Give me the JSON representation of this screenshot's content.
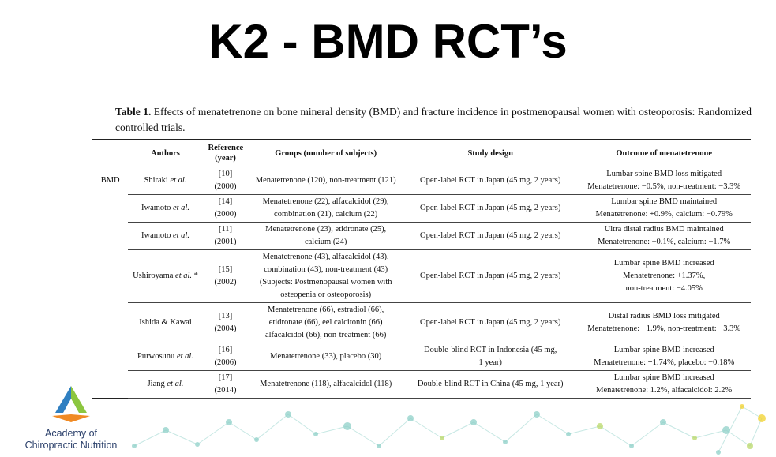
{
  "title": "K2 - BMD RCT’s",
  "table_caption": {
    "label": "Table 1.",
    "text": " Effects of menatetrenone on bone mineral density (BMD) and fracture incidence in postmenopausal women with osteoporosis: Randomized controlled trials."
  },
  "table": {
    "headers": [
      "",
      "Authors",
      "Reference (year)",
      "Groups (number of subjects)",
      "Study design",
      "Outcome of menatetrenone"
    ],
    "section_label": "BMD",
    "rows": [
      {
        "author": "Shiraki",
        "etal": " et al.",
        "suffix": "",
        "ref": "[10]",
        "year": "(2000)",
        "groups": [
          "Menatetrenone (120), non-treatment (121)"
        ],
        "design": [
          "Open-label RCT in Japan (45 mg, 2 years)"
        ],
        "outcome": [
          "Lumbar spine BMD loss mitigated",
          "Menatetrenone: −0.5%, non-treatment: −3.3%"
        ]
      },
      {
        "author": "Iwamoto",
        "etal": " et al.",
        "suffix": "",
        "ref": "[14]",
        "year": "(2000)",
        "groups": [
          "Menatetrenone (22), alfacalcidol (29),",
          "combination (21), calcium (22)"
        ],
        "design": [
          "Open-label RCT in Japan (45 mg, 2 years)"
        ],
        "outcome": [
          "Lumbar spine BMD maintained",
          "Menatetrenone: +0.9%, calcium: −0.79%"
        ]
      },
      {
        "author": "Iwamoto",
        "etal": " et al.",
        "suffix": "",
        "ref": "[11]",
        "year": "(2001)",
        "groups": [
          "Menatetrenone (23), etidronate (25),",
          "calcium (24)"
        ],
        "design": [
          "Open-label RCT in Japan (45 mg, 2 years)"
        ],
        "outcome": [
          "Ultra distal radius BMD maintained",
          "Menatetrenone: −0.1%, calcium: −1.7%"
        ]
      },
      {
        "author": "Ushiroyama",
        "etal": " et al.",
        "suffix": " *",
        "ref": "[15]",
        "year": "(2002)",
        "groups": [
          "Menatetrenone (43), alfacalcidol (43),",
          "combination (43), non-treatment (43)",
          "(Subjects: Postmenopausal women with",
          "osteopenia or osteoporosis)"
        ],
        "design": [
          "Open-label RCT in Japan (45 mg, 2 years)"
        ],
        "outcome": [
          "Lumbar spine BMD increased",
          "Menatetrenone: +1.37%,",
          "non-treatment: −4.05%"
        ]
      },
      {
        "author": "Ishida & Kawai",
        "etal": "",
        "suffix": "",
        "ref": "[13]",
        "year": "(2004)",
        "groups": [
          "Menatetrenone (66), estradiol (66),",
          "etidronate (66), eel calcitonin (66)",
          "alfacalcidol (66), non-treatment (66)"
        ],
        "design": [
          "Open-label RCT in Japan (45 mg, 2 years)"
        ],
        "outcome": [
          "Distal radius BMD loss mitigated",
          "Menatetrenone: −1.9%, non-treatment: −3.3%"
        ]
      },
      {
        "author": "Purwosunu",
        "etal": " et al.",
        "suffix": "",
        "ref": "[16]",
        "year": "(2006)",
        "groups": [
          "Menatetrenone (33), placebo (30)"
        ],
        "design": [
          "Double-blind RCT in Indonesia (45 mg,",
          "1 year)"
        ],
        "outcome": [
          "Lumbar spine BMD increased",
          "Menatetrenone: +1.74%, placebo: −0.18%"
        ]
      },
      {
        "author": "Jiang",
        "etal": " et al.",
        "suffix": "",
        "ref": "[17]",
        "year": "(2014)",
        "groups": [
          "Menatetrenone (118), alfacalcidol (118)"
        ],
        "design": [
          "Double-blind RCT in China (45 mg, 1 year)"
        ],
        "outcome": [
          "Lumbar spine BMD increased",
          "Menatetrenone: 1.2%, alfacalcidol: 2.2%"
        ]
      }
    ]
  },
  "logo": {
    "line1": "Academy of",
    "line2": "Chiropractic Nutrition",
    "colors": {
      "blue": "#2f7fc1",
      "green": "#8cc63f",
      "orange": "#f08a24",
      "navy": "#2a3f6a"
    }
  },
  "colors": {
    "deco_teal": "#8fd0c8",
    "deco_green": "#b9d86a",
    "deco_yellow": "#f2d22b"
  }
}
